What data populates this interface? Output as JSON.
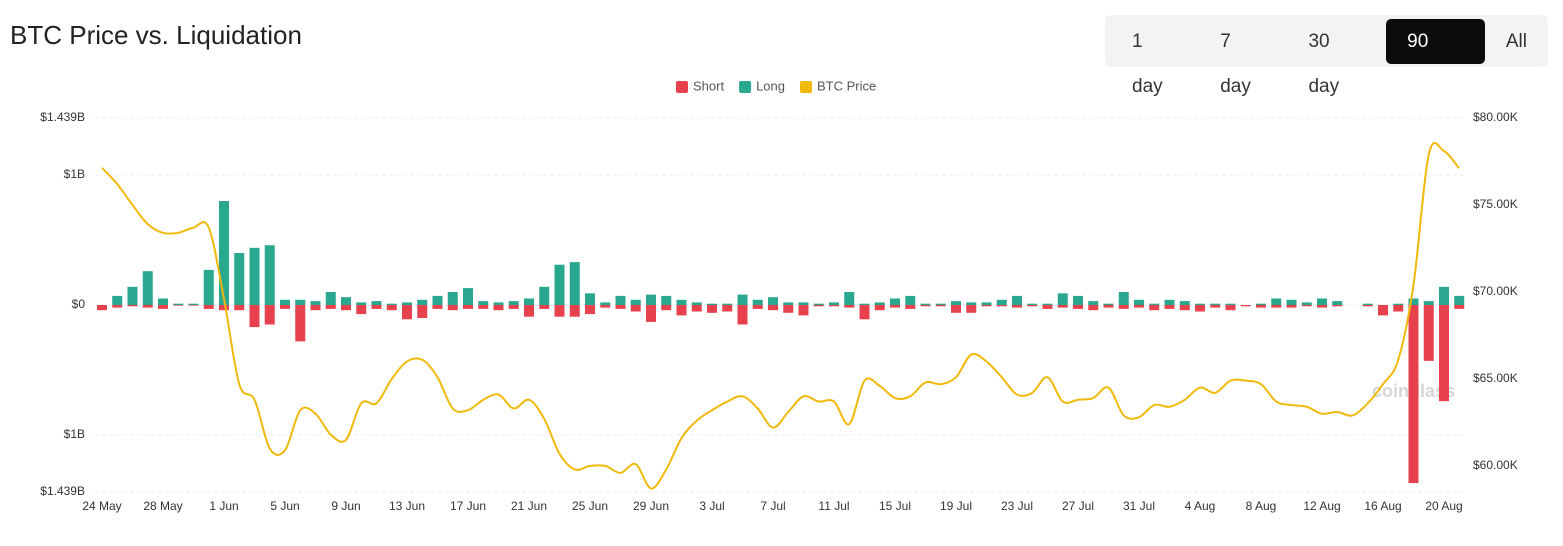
{
  "title": "BTC Price vs. Liquidation",
  "controls": {
    "ranges": [
      "1 day",
      "7 day",
      "30 day",
      "90 day",
      "All"
    ],
    "selected": "90 day"
  },
  "watermark": "coinglass",
  "chart_data": {
    "type": "bar_line",
    "categories": [
      "24 May",
      null,
      null,
      null,
      "28 May",
      null,
      null,
      null,
      "1 Jun",
      null,
      null,
      null,
      "5 Jun",
      null,
      null,
      null,
      "9 Jun",
      null,
      null,
      null,
      "13 Jun",
      null,
      null,
      null,
      "17 Jun",
      null,
      null,
      null,
      "21 Jun",
      null,
      null,
      null,
      "25 Jun",
      null,
      null,
      null,
      "29 Jun",
      null,
      null,
      null,
      "3 Jul",
      null,
      null,
      null,
      "7 Jul",
      null,
      null,
      null,
      "11 Jul",
      null,
      null,
      null,
      "15 Jul",
      null,
      null,
      null,
      "19 Jul",
      null,
      null,
      null,
      "23 Jul",
      null,
      null,
      null,
      "27 Jul",
      null,
      null,
      null,
      "31 Jul",
      null,
      null,
      null,
      "4 Aug",
      null,
      null,
      null,
      "8 Aug",
      null,
      null,
      null,
      "12 Aug",
      null,
      null,
      null,
      "16 Aug",
      null,
      null,
      null,
      "20 Aug",
      null
    ],
    "series": [
      {
        "name": "Short",
        "color": "#e8414e",
        "kind": "bar",
        "values": [
          -40000000,
          -20000000,
          -10000000,
          -20000000,
          -30000000,
          -5000000,
          -5000000,
          -30000000,
          -40000000,
          -40000000,
          -170000000,
          -150000000,
          -30000000,
          -280000000,
          -40000000,
          -30000000,
          -40000000,
          -70000000,
          -30000000,
          -40000000,
          -110000000,
          -100000000,
          -30000000,
          -40000000,
          -30000000,
          -30000000,
          -40000000,
          -30000000,
          -90000000,
          -30000000,
          -90000000,
          -90000000,
          -70000000,
          -20000000,
          -30000000,
          -50000000,
          -130000000,
          -40000000,
          -80000000,
          -50000000,
          -60000000,
          -50000000,
          -150000000,
          -30000000,
          -40000000,
          -60000000,
          -80000000,
          -10000000,
          -10000000,
          -20000000,
          -110000000,
          -40000000,
          -20000000,
          -30000000,
          -10000000,
          -10000000,
          -60000000,
          -60000000,
          -10000000,
          -10000000,
          -20000000,
          -10000000,
          -30000000,
          -20000000,
          -30000000,
          -40000000,
          -20000000,
          -30000000,
          -20000000,
          -40000000,
          -30000000,
          -40000000,
          -50000000,
          -20000000,
          -40000000,
          -10000000,
          -20000000,
          -20000000,
          -20000000,
          -10000000,
          -20000000,
          -10000000,
          0,
          -10000000,
          -80000000,
          -50000000,
          -1370000000,
          -430000000,
          -740000000,
          -30000000
        ]
      },
      {
        "name": "Long",
        "color": "#2aa78f",
        "kind": "bar",
        "values": [
          0,
          70000000,
          140000000,
          260000000,
          50000000,
          10000000,
          10000000,
          270000000,
          800000000,
          400000000,
          440000000,
          460000000,
          40000000,
          40000000,
          30000000,
          100000000,
          60000000,
          20000000,
          30000000,
          10000000,
          20000000,
          40000000,
          70000000,
          100000000,
          130000000,
          30000000,
          20000000,
          30000000,
          50000000,
          140000000,
          310000000,
          330000000,
          90000000,
          20000000,
          70000000,
          40000000,
          80000000,
          70000000,
          40000000,
          20000000,
          10000000,
          10000000,
          80000000,
          40000000,
          60000000,
          20000000,
          20000000,
          10000000,
          20000000,
          100000000,
          10000000,
          20000000,
          50000000,
          70000000,
          10000000,
          10000000,
          30000000,
          20000000,
          20000000,
          40000000,
          70000000,
          10000000,
          10000000,
          90000000,
          70000000,
          30000000,
          10000000,
          100000000,
          40000000,
          10000000,
          40000000,
          30000000,
          10000000,
          10000000,
          10000000,
          0,
          10000000,
          50000000,
          40000000,
          20000000,
          50000000,
          30000000,
          0,
          10000000,
          0,
          10000000,
          50000000,
          30000000,
          140000000,
          70000000
        ]
      },
      {
        "name": "BTC Price",
        "color": "#f0b90b",
        "kind": "line",
        "axis": "y2",
        "values": [
          77140,
          76200,
          75000,
          73900,
          73400,
          73400,
          73700,
          73700,
          69600,
          64700,
          63800,
          61000,
          60900,
          63200,
          63000,
          61800,
          61500,
          63600,
          63600,
          65000,
          66000,
          66100,
          65100,
          63300,
          63200,
          63800,
          64100,
          63300,
          63800,
          62700,
          60700,
          59800,
          60000,
          60000,
          59600,
          60100,
          58700,
          59800,
          61600,
          62600,
          63200,
          63700,
          64000,
          63300,
          62200,
          63100,
          64000,
          63700,
          63700,
          62400,
          64900,
          64600,
          63900,
          64000,
          64800,
          64700,
          65100,
          66400,
          66000,
          65100,
          64100,
          64200,
          65100,
          63700,
          63800,
          63900,
          64500,
          62900,
          62800,
          63500,
          63400,
          63800,
          64500,
          64200,
          64900,
          64900,
          64700,
          63700,
          63500,
          63400,
          63000,
          63100,
          62900,
          63600,
          64700,
          66100,
          70400,
          77900,
          78100,
          77100
        ]
      }
    ],
    "ylim": [
      -1439000000,
      1439000000
    ],
    "yticks": [
      {
        "value": 1439000000,
        "label": "$1.439B"
      },
      {
        "value": 1000000000,
        "label": "$1B"
      },
      {
        "value": 0,
        "label": "$0"
      },
      {
        "value": -1000000000,
        "label": "$1B"
      },
      {
        "value": -1439000000,
        "label": "$1.439B"
      }
    ],
    "y2lim": [
      58500,
      80000
    ],
    "y2ticks": [
      {
        "value": 80000,
        "label": "$80.00K"
      },
      {
        "value": 75000,
        "label": "$75.00K"
      },
      {
        "value": 70000,
        "label": "$70.00K"
      },
      {
        "value": 65000,
        "label": "$65.00K"
      },
      {
        "value": 60000,
        "label": "$60.00K"
      }
    ],
    "grid": true,
    "legend": "top"
  }
}
